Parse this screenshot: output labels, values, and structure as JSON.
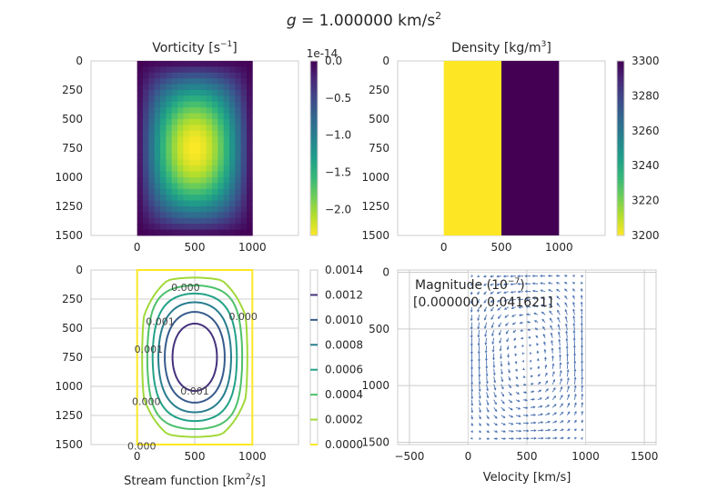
{
  "figure": {
    "title_var": "g",
    "title_rest": " = 1.000000 km/s",
    "title_sup": "2"
  },
  "chart_data": [
    {
      "type": "heatmap",
      "id": "vorticity",
      "title_main": "Vorticity [s",
      "title_sup": "−1",
      "title_end": "]",
      "xlim": [
        -400,
        1400
      ],
      "ylim": [
        1500,
        0
      ],
      "x_ticks": [
        "0",
        "500",
        "1000"
      ],
      "x_tick_values": [
        0,
        500,
        1000
      ],
      "y_ticks": [
        "0",
        "250",
        "500",
        "750",
        "1000",
        "1250",
        "1500"
      ],
      "y_tick_values": [
        0,
        250,
        500,
        750,
        1000,
        1250,
        1500
      ],
      "x_extent": [
        0,
        1000
      ],
      "y_extent": [
        0,
        1500
      ],
      "grid_cols": 20,
      "grid_rows": 30,
      "field": "-2.35e-14 * sin(pi*x/1000) * sin(pi*y/1500)",
      "colorbar": {
        "colormap": "viridis_r",
        "range": [
          -2.35,
          0
        ],
        "offset_text": "1e-14",
        "ticks": [
          "0.0",
          "−0.5",
          "−1.0",
          "−1.5",
          "−2.0"
        ],
        "tick_values": [
          0,
          -0.5,
          -1.0,
          -1.5,
          -2.0
        ]
      }
    },
    {
      "type": "heatmap",
      "id": "density",
      "title_main": "Density [kg/m",
      "title_sup": "3",
      "title_end": "]",
      "xlim": [
        -400,
        1400
      ],
      "ylim": [
        1500,
        0
      ],
      "x_ticks": [
        "0",
        "500",
        "1000"
      ],
      "x_tick_values": [
        0,
        500,
        1000
      ],
      "y_ticks": [
        "0",
        "250",
        "500",
        "750",
        "1000",
        "1250",
        "1500"
      ],
      "y_tick_values": [
        0,
        250,
        500,
        750,
        1000,
        1250,
        1500
      ],
      "x_extent": [
        0,
        1000
      ],
      "y_extent": [
        0,
        1500
      ],
      "regions": [
        {
          "x": [
            0,
            500
          ],
          "value": 3200
        },
        {
          "x": [
            500,
            1000
          ],
          "value": 3300
        }
      ],
      "colorbar": {
        "colormap": "viridis_r",
        "range": [
          3200,
          3300
        ],
        "ticks": [
          "3300",
          "3280",
          "3260",
          "3240",
          "3220",
          "3200"
        ],
        "tick_values": [
          3300,
          3280,
          3260,
          3240,
          3220,
          3200
        ]
      }
    },
    {
      "type": "contour",
      "id": "stream-function",
      "xlabel_main": "Stream function [km",
      "xlabel_sup": "2",
      "xlabel_end": "/s]",
      "xlim": [
        -400,
        1400
      ],
      "ylim": [
        1500,
        0
      ],
      "x_ticks": [
        "0",
        "500",
        "1000"
      ],
      "x_tick_values": [
        0,
        500,
        1000
      ],
      "y_ticks": [
        "0",
        "250",
        "500",
        "750",
        "1000",
        "1250",
        "1500"
      ],
      "y_tick_values": [
        0,
        250,
        500,
        750,
        1000,
        1250,
        1500
      ],
      "peak_value": 0.00146,
      "peak_location": [
        500,
        750
      ],
      "levels": [
        0.0,
        0.0002,
        0.0004,
        0.0006,
        0.0008,
        0.001,
        0.0012
      ],
      "contour_labels": [
        {
          "text": "0.001",
          "x": 500,
          "y": 1040
        },
        {
          "text": "0.001",
          "x": 200,
          "y": 440
        },
        {
          "text": "0.001",
          "x": 100,
          "y": 680
        },
        {
          "text": "0.000",
          "x": 420,
          "y": 150
        },
        {
          "text": "0.000",
          "x": 80,
          "y": 1130
        },
        {
          "text": "0.000",
          "x": 40,
          "y": 1510
        },
        {
          "text": "0.000",
          "x": 920,
          "y": 400
        }
      ],
      "colorbar": {
        "colormap": "viridis_r",
        "range": [
          0.0,
          0.0014
        ],
        "ticks": [
          "0.0014",
          "0.0012",
          "0.0010",
          "0.0008",
          "0.0006",
          "0.0004",
          "0.0002",
          "0.0000"
        ],
        "tick_values": [
          0.0014,
          0.0012,
          0.001,
          0.0008,
          0.0006,
          0.0004,
          0.0002,
          0.0
        ]
      }
    },
    {
      "type": "quiver",
      "id": "velocity",
      "xlabel": "Velocity [km/s]",
      "annotation_line1": "Magnitude (10",
      "annotation_sup": "−7",
      "annotation_line1_end": ")",
      "annotation_line2": "[0.000000, 0.041621]",
      "magnitude_range": [
        0.0,
        0.041621
      ],
      "xlim": [
        -600,
        1600
      ],
      "ylim": [
        1520,
        -20
      ],
      "x_ticks": [
        "−500",
        "0",
        "500",
        "1000",
        "1500"
      ],
      "x_tick_values": [
        -500,
        0,
        500,
        1000,
        1500
      ],
      "y_ticks": [
        "0",
        "500",
        "1000",
        "1500"
      ],
      "y_tick_values": [
        0,
        500,
        1000,
        1500
      ],
      "grid_cols": 16,
      "grid_rows": 22,
      "field": "u = -dpsi/dy, v = dpsi/dx, psi = sin(pi*x/1000)*sin(pi*y/1500)",
      "arrow_color": "#4c72b0"
    }
  ]
}
